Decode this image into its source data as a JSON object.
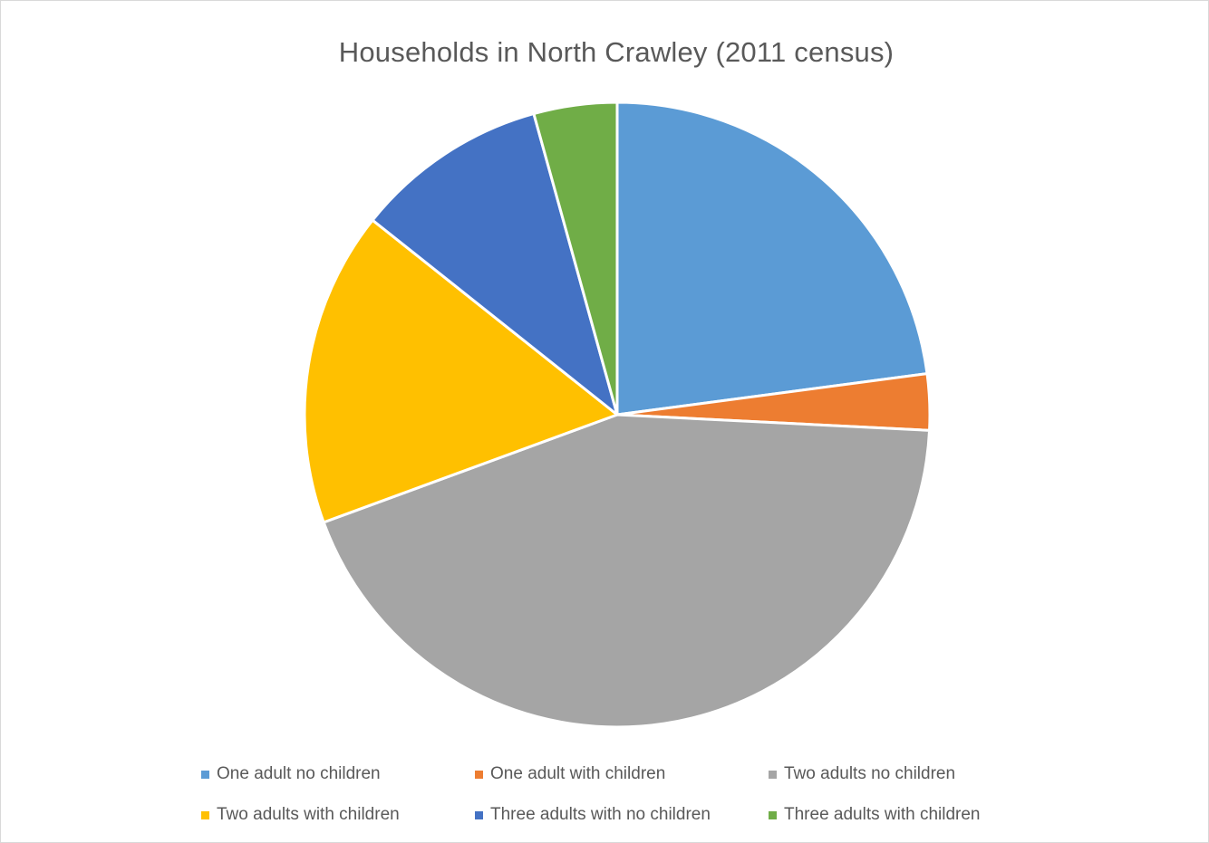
{
  "chart_data": {
    "type": "pie",
    "title": "Households in North Crawley (2011 census)",
    "categories": [
      "One adult no children",
      "One adult with children",
      "Two adults no children",
      "Two adults with children",
      "Three adults with no children",
      "Three adults with children"
    ],
    "values": [
      22.9,
      2.9,
      43.6,
      16.3,
      10.0,
      4.3
    ],
    "colors": [
      "#5b9bd5",
      "#ed7d31",
      "#a5a5a5",
      "#ffc000",
      "#4472c4",
      "#70ad47"
    ],
    "legend_position": "bottom",
    "start_angle": "top",
    "direction": "clockwise"
  }
}
